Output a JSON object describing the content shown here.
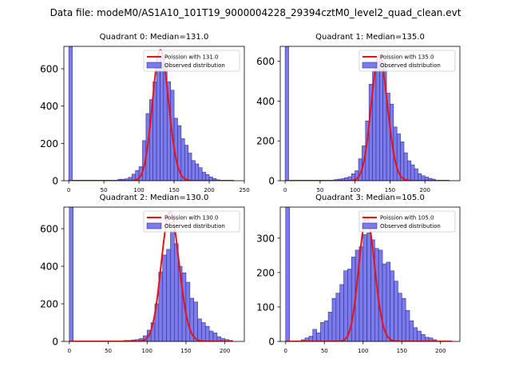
{
  "suptitle": "Data file: modeM0/AS1A10_101T19_9000004228_29394cztM0_level2_quad_clean.evt",
  "colors": {
    "bar_fill": "#7b7bea",
    "bar_stroke": "#2e2e9a",
    "poisson_line": "#ee1111",
    "axis": "#000000"
  },
  "chart_data": [
    {
      "type": "bar",
      "title": "Quadrant 0: Median=131.0",
      "median": 131.0,
      "xlim": [
        -7,
        250
      ],
      "ylim": [
        0,
        720
      ],
      "xticks": [
        0,
        50,
        100,
        150,
        200,
        250
      ],
      "yticks": [
        0,
        200,
        400,
        600
      ],
      "bin_width": 5,
      "bars": [
        [
          0,
          720
        ],
        [
          65,
          3
        ],
        [
          70,
          8
        ],
        [
          75,
          8
        ],
        [
          80,
          10
        ],
        [
          85,
          18
        ],
        [
          90,
          35
        ],
        [
          95,
          55
        ],
        [
          100,
          75
        ],
        [
          105,
          215
        ],
        [
          110,
          360
        ],
        [
          115,
          435
        ],
        [
          120,
          530
        ],
        [
          125,
          630
        ],
        [
          130,
          660
        ],
        [
          135,
          625
        ],
        [
          140,
          530
        ],
        [
          145,
          485
        ],
        [
          150,
          335
        ],
        [
          155,
          295
        ],
        [
          160,
          225
        ],
        [
          165,
          190
        ],
        [
          170,
          148
        ],
        [
          175,
          108
        ],
        [
          180,
          90
        ],
        [
          185,
          70
        ],
        [
          190,
          45
        ],
        [
          195,
          33
        ],
        [
          200,
          20
        ],
        [
          205,
          12
        ],
        [
          210,
          5
        ]
      ],
      "poisson": {
        "mu": 131.0,
        "peak": 700,
        "x_start": 0,
        "x_end": 235
      },
      "legend": [
        {
          "label": "Poission with 131.0",
          "kind": "line"
        },
        {
          "label": "Observed distribution",
          "kind": "patch"
        }
      ]
    },
    {
      "type": "bar",
      "title": "Quadrant 1: Median=135.0",
      "median": 135.0,
      "xlim": [
        -7,
        250
      ],
      "ylim": [
        0,
        675
      ],
      "xticks": [
        0,
        50,
        100,
        150,
        200
      ],
      "yticks": [
        0,
        200,
        400,
        600
      ],
      "bin_width": 5,
      "bars": [
        [
          0,
          675
        ],
        [
          70,
          5
        ],
        [
          75,
          8
        ],
        [
          80,
          10
        ],
        [
          85,
          15
        ],
        [
          90,
          20
        ],
        [
          95,
          35
        ],
        [
          100,
          50
        ],
        [
          105,
          110
        ],
        [
          110,
          175
        ],
        [
          115,
          300
        ],
        [
          120,
          485
        ],
        [
          125,
          555
        ],
        [
          130,
          600
        ],
        [
          135,
          630
        ],
        [
          140,
          575
        ],
        [
          145,
          440
        ],
        [
          150,
          385
        ],
        [
          155,
          270
        ],
        [
          160,
          235
        ],
        [
          165,
          195
        ],
        [
          170,
          140
        ],
        [
          175,
          100
        ],
        [
          180,
          80
        ],
        [
          185,
          60
        ],
        [
          190,
          35
        ],
        [
          195,
          25
        ],
        [
          200,
          18
        ],
        [
          205,
          12
        ],
        [
          210,
          8
        ]
      ],
      "poisson": {
        "mu": 135.0,
        "peak": 630,
        "x_start": 0,
        "x_end": 235
      },
      "legend": [
        {
          "label": "Poission with 135.0",
          "kind": "line"
        },
        {
          "label": "Observed distribution",
          "kind": "patch"
        }
      ]
    },
    {
      "type": "bar",
      "title": "Quadrant 2: Median=130.0",
      "median": 130.0,
      "xlim": [
        -7,
        225
      ],
      "ylim": [
        0,
        715
      ],
      "xticks": [
        0,
        50,
        100,
        150,
        200
      ],
      "yticks": [
        0,
        200,
        400,
        600
      ],
      "bin_width": 5,
      "bars": [
        [
          0,
          715
        ],
        [
          70,
          5
        ],
        [
          75,
          5
        ],
        [
          80,
          8
        ],
        [
          85,
          10
        ],
        [
          90,
          15
        ],
        [
          95,
          30
        ],
        [
          100,
          60
        ],
        [
          105,
          100
        ],
        [
          110,
          200
        ],
        [
          115,
          370
        ],
        [
          120,
          460
        ],
        [
          125,
          490
        ],
        [
          130,
          590
        ],
        [
          135,
          520
        ],
        [
          140,
          400
        ],
        [
          145,
          365
        ],
        [
          150,
          315
        ],
        [
          155,
          230
        ],
        [
          160,
          210
        ],
        [
          165,
          120
        ],
        [
          170,
          100
        ],
        [
          175,
          80
        ],
        [
          180,
          55
        ],
        [
          185,
          45
        ],
        [
          190,
          25
        ],
        [
          195,
          15
        ],
        [
          200,
          10
        ],
        [
          205,
          5
        ]
      ],
      "poisson": {
        "mu": 130.0,
        "peak": 690,
        "x_start": 0,
        "x_end": 210
      },
      "legend": [
        {
          "label": "Poission with 130.0",
          "kind": "line"
        },
        {
          "label": "Observed distribution",
          "kind": "patch"
        }
      ]
    },
    {
      "type": "bar",
      "title": "Quadrant 3: Median=105.0",
      "median": 105.0,
      "xlim": [
        -7,
        225
      ],
      "ylim": [
        0,
        390
      ],
      "xticks": [
        0,
        50,
        100,
        150,
        200
      ],
      "yticks": [
        0,
        100,
        200,
        300
      ],
      "bin_width": 5,
      "bars": [
        [
          0,
          390
        ],
        [
          20,
          5
        ],
        [
          25,
          10
        ],
        [
          30,
          15
        ],
        [
          35,
          35
        ],
        [
          40,
          25
        ],
        [
          45,
          55
        ],
        [
          50,
          60
        ],
        [
          55,
          85
        ],
        [
          60,
          125
        ],
        [
          65,
          140
        ],
        [
          70,
          165
        ],
        [
          75,
          205
        ],
        [
          80,
          210
        ],
        [
          85,
          245
        ],
        [
          90,
          265
        ],
        [
          95,
          275
        ],
        [
          100,
          310
        ],
        [
          105,
          315
        ],
        [
          110,
          295
        ],
        [
          115,
          270
        ],
        [
          120,
          265
        ],
        [
          125,
          225
        ],
        [
          130,
          230
        ],
        [
          135,
          205
        ],
        [
          140,
          175
        ],
        [
          145,
          140
        ],
        [
          150,
          125
        ],
        [
          155,
          90
        ],
        [
          160,
          60
        ],
        [
          165,
          40
        ],
        [
          170,
          30
        ],
        [
          175,
          20
        ],
        [
          180,
          12
        ],
        [
          185,
          10
        ],
        [
          190,
          5
        ]
      ],
      "poisson": {
        "mu": 105.0,
        "peak": 360,
        "x_start": 0,
        "x_end": 215
      },
      "legend": [
        {
          "label": "Poission with 105.0",
          "kind": "line"
        },
        {
          "label": "Observed distribution",
          "kind": "patch"
        }
      ]
    }
  ]
}
